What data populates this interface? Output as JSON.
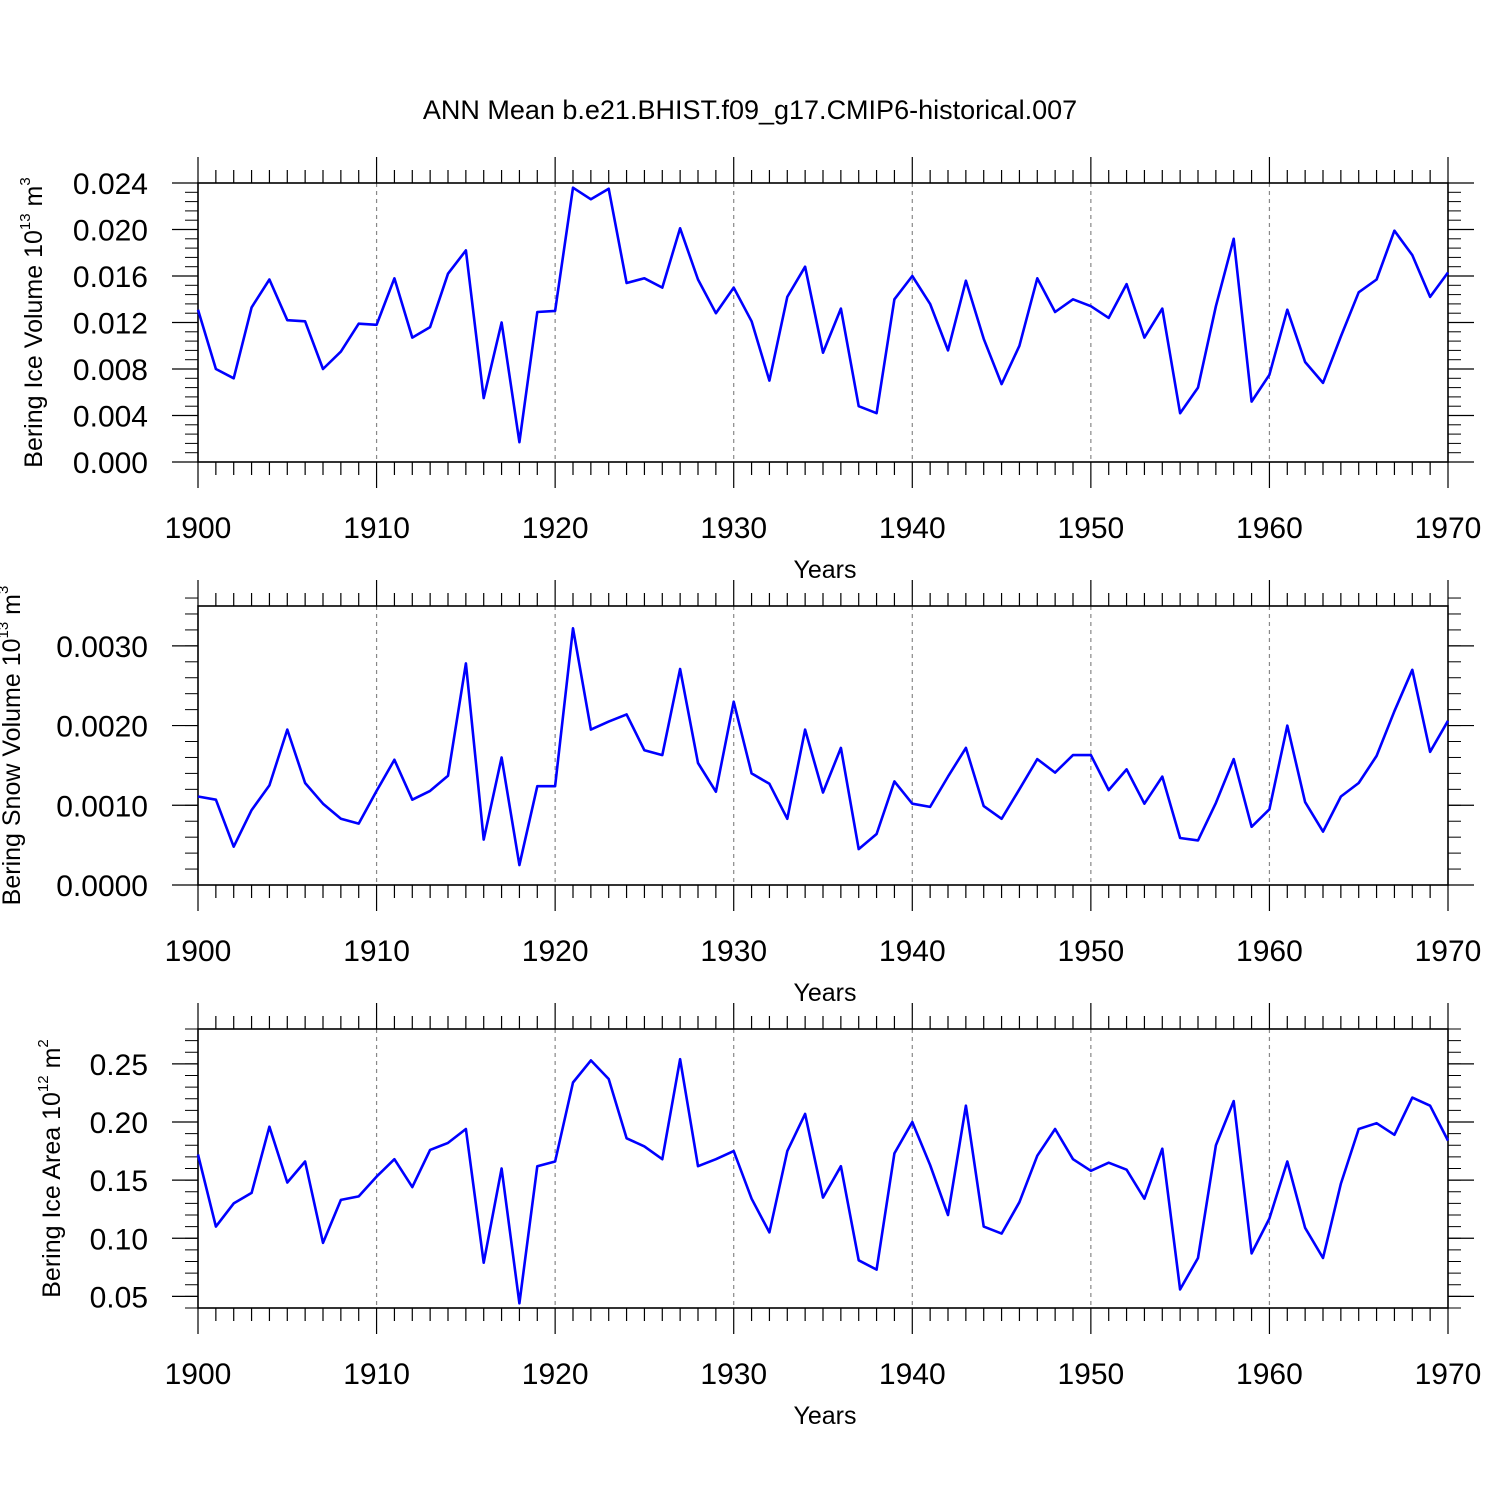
{
  "title": "ANN Mean b.e21.BHIST.f09_g17.CMIP6-historical.007",
  "chart_data": [
    {
      "type": "line",
      "title": "ANN Mean b.e21.BHIST.f09_g17.CMIP6-historical.007",
      "xlabel": "Years",
      "ylabel": {
        "text": "Bering Ice Volume 10",
        "exp": "13",
        "unit": " m",
        "unit_exp": "3"
      },
      "xlim": [
        1900,
        1970
      ],
      "ylim": [
        0,
        0.024
      ],
      "x_ticks": [
        "1900",
        "1910",
        "1920",
        "1930",
        "1940",
        "1950",
        "1960",
        "1970"
      ],
      "y_ticks": [
        {
          "value": 0.0,
          "label": "0.000"
        },
        {
          "value": 0.004,
          "label": "0.004"
        },
        {
          "value": 0.008,
          "label": "0.008"
        },
        {
          "value": 0.012,
          "label": "0.012"
        },
        {
          "value": 0.016,
          "label": "0.016"
        },
        {
          "value": 0.02,
          "label": "0.020"
        },
        {
          "value": 0.024,
          "label": "0.024"
        }
      ],
      "y_minor_step": 0.0008,
      "grid": "vertical dashed at decades",
      "line_color": "#0000ff",
      "x_start": 1900,
      "values": [
        0.0131,
        0.008,
        0.0072,
        0.0133,
        0.0157,
        0.0122,
        0.0121,
        0.008,
        0.0095,
        0.0119,
        0.0118,
        0.0158,
        0.0107,
        0.0116,
        0.0162,
        0.0182,
        0.0055,
        0.012,
        0.0017,
        0.0129,
        0.013,
        0.0236,
        0.0226,
        0.0235,
        0.0154,
        0.0158,
        0.015,
        0.0201,
        0.0157,
        0.0128,
        0.015,
        0.0121,
        0.007,
        0.0142,
        0.0168,
        0.0094,
        0.0132,
        0.0048,
        0.0042,
        0.014,
        0.016,
        0.0136,
        0.0096,
        0.0156,
        0.0106,
        0.0067,
        0.01,
        0.0158,
        0.0129,
        0.014,
        0.0134,
        0.0124,
        0.0153,
        0.0107,
        0.0132,
        0.0042,
        0.0064,
        0.0134,
        0.0192,
        0.0052,
        0.0075,
        0.0131,
        0.0086,
        0.0068,
        0.0108,
        0.0146,
        0.0157,
        0.0199,
        0.0178,
        0.0142,
        0.0163
      ]
    },
    {
      "type": "line",
      "xlabel": "Years",
      "ylabel": {
        "text": "Bering Snow Volume 10",
        "exp": "13",
        "unit": " m",
        "unit_exp": "3"
      },
      "xlim": [
        1900,
        1970
      ],
      "ylim": [
        0,
        0.0035
      ],
      "x_ticks": [
        "1900",
        "1910",
        "1920",
        "1930",
        "1940",
        "1950",
        "1960",
        "1970"
      ],
      "y_ticks": [
        {
          "value": 0.0,
          "label": "0.0000"
        },
        {
          "value": 0.001,
          "label": "0.0010"
        },
        {
          "value": 0.002,
          "label": "0.0020"
        },
        {
          "value": 0.003,
          "label": "0.0030"
        }
      ],
      "y_minor_step": 0.0002,
      "grid": "vertical dashed at decades",
      "line_color": "#0000ff",
      "x_start": 1900,
      "values": [
        0.00111,
        0.00107,
        0.00048,
        0.00094,
        0.00125,
        0.00195,
        0.00128,
        0.00102,
        0.00083,
        0.00077,
        0.00118,
        0.00157,
        0.00107,
        0.00118,
        0.00137,
        0.00278,
        0.00057,
        0.0016,
        0.00025,
        0.00124,
        0.00124,
        0.00322,
        0.00195,
        0.00205,
        0.00214,
        0.00169,
        0.00163,
        0.00271,
        0.00153,
        0.00117,
        0.0023,
        0.0014,
        0.00127,
        0.00083,
        0.00195,
        0.00116,
        0.00172,
        0.00045,
        0.00064,
        0.0013,
        0.00102,
        0.00098,
        0.00136,
        0.00172,
        0.00099,
        0.00083,
        0.0012,
        0.00158,
        0.00141,
        0.00163,
        0.00163,
        0.00119,
        0.00145,
        0.00102,
        0.00136,
        0.00059,
        0.00056,
        0.00103,
        0.00158,
        0.00073,
        0.00095,
        0.002,
        0.00104,
        0.00067,
        0.00111,
        0.00128,
        0.00162,
        0.00218,
        0.0027,
        0.00167,
        0.00206
      ]
    },
    {
      "type": "line",
      "xlabel": "Years",
      "ylabel": {
        "text": "Bering Ice Area 10",
        "exp": "12",
        "unit": " m",
        "unit_exp": "2"
      },
      "xlim": [
        1900,
        1970
      ],
      "ylim": [
        0.04,
        0.28
      ],
      "x_ticks": [
        "1900",
        "1910",
        "1920",
        "1930",
        "1940",
        "1950",
        "1960",
        "1970"
      ],
      "y_ticks": [
        {
          "value": 0.05,
          "label": "0.05"
        },
        {
          "value": 0.1,
          "label": "0.10"
        },
        {
          "value": 0.15,
          "label": "0.15"
        },
        {
          "value": 0.2,
          "label": "0.20"
        },
        {
          "value": 0.25,
          "label": "0.25"
        }
      ],
      "y_minor_step": 0.01,
      "grid": "vertical dashed at decades",
      "line_color": "#0000ff",
      "x_start": 1900,
      "values": [
        0.172,
        0.11,
        0.13,
        0.139,
        0.196,
        0.148,
        0.166,
        0.096,
        0.133,
        0.136,
        0.153,
        0.168,
        0.144,
        0.176,
        0.182,
        0.194,
        0.079,
        0.16,
        0.044,
        0.162,
        0.166,
        0.234,
        0.253,
        0.237,
        0.186,
        0.179,
        0.168,
        0.254,
        0.162,
        0.168,
        0.175,
        0.134,
        0.105,
        0.175,
        0.207,
        0.135,
        0.162,
        0.081,
        0.073,
        0.173,
        0.2,
        0.163,
        0.12,
        0.214,
        0.11,
        0.104,
        0.131,
        0.171,
        0.194,
        0.168,
        0.158,
        0.165,
        0.159,
        0.134,
        0.177,
        0.056,
        0.083,
        0.18,
        0.218,
        0.087,
        0.117,
        0.166,
        0.109,
        0.083,
        0.147,
        0.194,
        0.199,
        0.189,
        0.221,
        0.214,
        0.184
      ]
    }
  ]
}
